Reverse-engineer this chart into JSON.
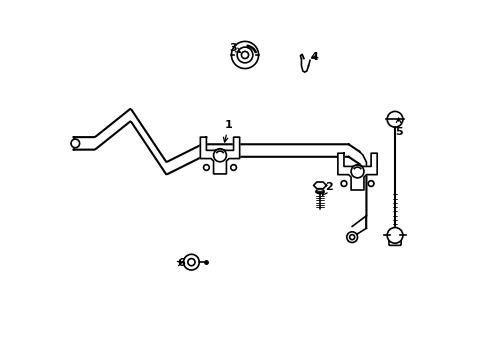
{
  "bg_color": "#ffffff",
  "line_color": "#000000",
  "line_width": 1.2
}
